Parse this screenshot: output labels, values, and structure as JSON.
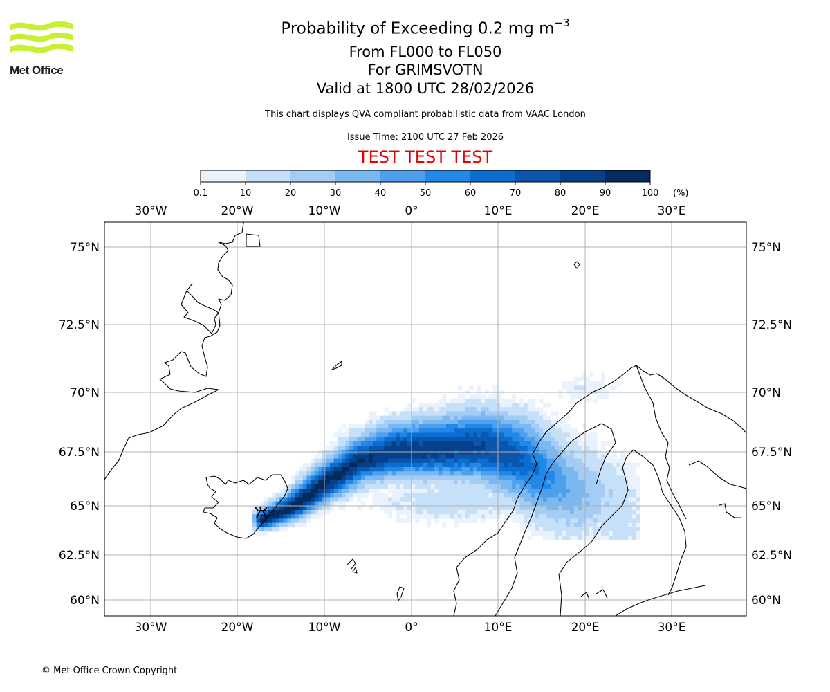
{
  "header": {
    "title_text": "Probability of Exceeding 0.2 mg m",
    "title_superscript": "−3",
    "subtitle_lines": [
      "From FL000 to FL050",
      "For GRIMSVOTN",
      "Valid at 1800 UTC 28/02/2026"
    ],
    "description": "This chart displays QVA compliant probabilistic data from VAAC London",
    "issue_time": "Issue Time: 2100 UTC 27 Feb 2026",
    "test_banner": "TEST TEST TEST"
  },
  "logo": {
    "text": "Met Office",
    "color": "#c8f032"
  },
  "colorbar": {
    "ticks": [
      "0.1",
      "10",
      "20",
      "30",
      "40",
      "50",
      "60",
      "70",
      "80",
      "90",
      "100"
    ],
    "unit": "(%)",
    "colors": [
      "#eaf3fd",
      "#c6e0fa",
      "#a4cdf6",
      "#7ab8f2",
      "#4ea0ee",
      "#2288e8",
      "#0c6dd0",
      "#0a56ad",
      "#07408a",
      "#042a5e"
    ]
  },
  "map": {
    "lon_ticks": [
      "30°W",
      "20°W",
      "10°W",
      "0°",
      "10°E",
      "20°E",
      "30°E"
    ],
    "lat_ticks": [
      "75°N",
      "72.5°N",
      "70°N",
      "67.5°N",
      "65°N",
      "62.5°N",
      "60°N"
    ],
    "volcano": "GRIMSVOTN",
    "volcano_icon": "volcano-icon"
  },
  "footer": {
    "copyright": "© Met Office Crown Copyright"
  }
}
